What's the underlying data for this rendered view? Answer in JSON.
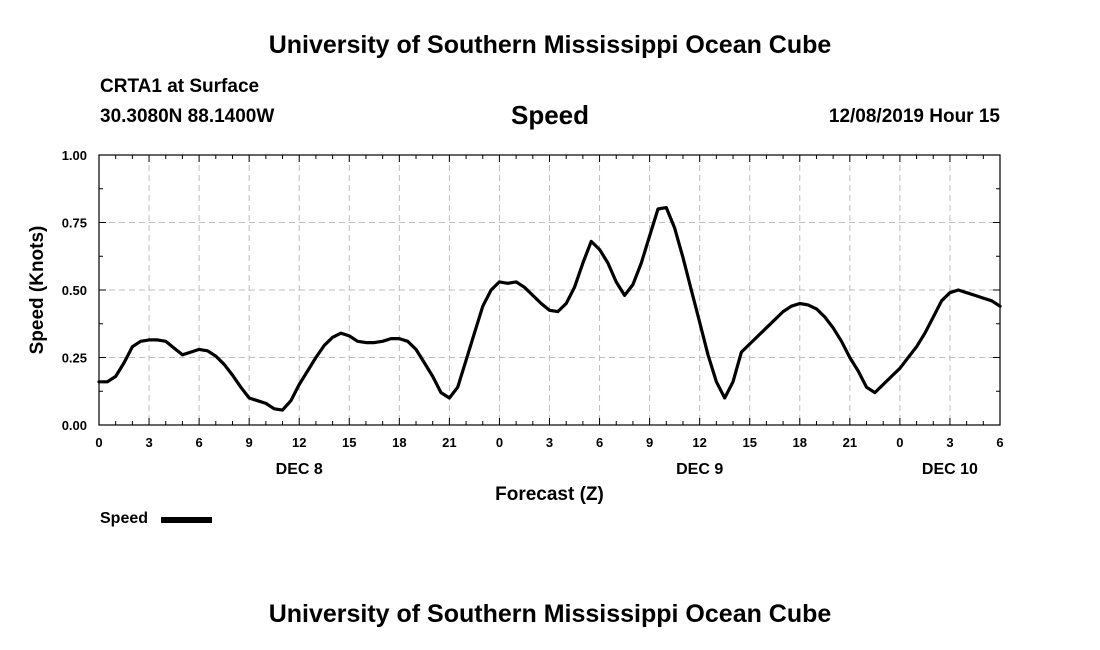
{
  "header": {
    "top_title": "University of Southern Mississippi Ocean Cube",
    "bottom_title": "University of Southern Mississippi Ocean Cube",
    "station": "CRTA1 at Surface",
    "coords": "30.3080N 88.1400W",
    "variable": "Speed",
    "datetime": "12/08/2019 Hour 15"
  },
  "legend": {
    "label": "Speed"
  },
  "chart_data": {
    "type": "line",
    "title": "Speed",
    "xlabel": "Forecast (Z)",
    "ylabel": "Speed (Knots)",
    "ylim": [
      0,
      1
    ],
    "xlim": [
      0,
      54
    ],
    "yticks": [
      "0.00",
      "0.25",
      "0.50",
      "0.75",
      "1.00"
    ],
    "ytick_values": [
      0,
      0.25,
      0.5,
      0.75,
      1.0
    ],
    "xtick_labels": [
      "0",
      "3",
      "6",
      "9",
      "12",
      "15",
      "18",
      "21",
      "0",
      "3",
      "6",
      "9",
      "12",
      "15",
      "18",
      "21",
      "0",
      "3",
      "6"
    ],
    "date_labels": [
      {
        "label": "DEC 8",
        "hour": 12
      },
      {
        "label": "DEC 9",
        "hour": 36
      },
      {
        "label": "DEC 10",
        "hour": 51
      }
    ],
    "grid": true,
    "series": [
      {
        "name": "Speed",
        "x": [
          0,
          0.5,
          1,
          1.5,
          2,
          2.5,
          3,
          3.5,
          4,
          4.5,
          5,
          5.5,
          6,
          6.5,
          7,
          7.5,
          8,
          8.5,
          9,
          9.5,
          10,
          10.5,
          11,
          11.5,
          12,
          12.5,
          13,
          13.5,
          14,
          14.5,
          15,
          15.5,
          16,
          16.5,
          17,
          17.5,
          18,
          18.5,
          19,
          19.5,
          20,
          20.5,
          21,
          21.5,
          22,
          22.5,
          23,
          23.5,
          24,
          24.5,
          25,
          25.5,
          26,
          26.5,
          27,
          27.5,
          28,
          28.5,
          29,
          29.5,
          30,
          30.5,
          31,
          31.5,
          32,
          32.5,
          33,
          33.5,
          34,
          34.5,
          35,
          35.5,
          36,
          36.5,
          37,
          37.5,
          38,
          38.5,
          39,
          39.5,
          40,
          40.5,
          41,
          41.5,
          42,
          42.5,
          43,
          43.5,
          44,
          44.5,
          45,
          45.5,
          46,
          46.5,
          47,
          47.5,
          48,
          48.5,
          49,
          49.5,
          50,
          50.5,
          51,
          51.5,
          52,
          52.5,
          53,
          53.5,
          54
        ],
        "values": [
          0.16,
          0.16,
          0.18,
          0.23,
          0.29,
          0.31,
          0.315,
          0.315,
          0.31,
          0.285,
          0.26,
          0.27,
          0.28,
          0.275,
          0.255,
          0.225,
          0.185,
          0.14,
          0.1,
          0.09,
          0.08,
          0.06,
          0.055,
          0.09,
          0.15,
          0.2,
          0.25,
          0.295,
          0.325,
          0.34,
          0.33,
          0.31,
          0.305,
          0.305,
          0.31,
          0.32,
          0.32,
          0.31,
          0.28,
          0.23,
          0.18,
          0.12,
          0.1,
          0.14,
          0.24,
          0.34,
          0.44,
          0.5,
          0.53,
          0.525,
          0.53,
          0.51,
          0.48,
          0.45,
          0.425,
          0.42,
          0.45,
          0.51,
          0.6,
          0.68,
          0.65,
          0.6,
          0.53,
          0.48,
          0.52,
          0.6,
          0.7,
          0.8,
          0.805,
          0.73,
          0.62,
          0.5,
          0.38,
          0.26,
          0.16,
          0.1,
          0.16,
          0.27,
          0.3,
          0.33,
          0.36,
          0.39,
          0.42,
          0.44,
          0.45,
          0.445,
          0.43,
          0.4,
          0.36,
          0.31,
          0.25,
          0.2,
          0.14,
          0.12,
          0.15,
          0.18,
          0.21,
          0.25,
          0.29,
          0.34,
          0.4,
          0.46,
          0.49,
          0.5,
          0.49,
          0.48,
          0.47,
          0.46,
          0.44
        ]
      }
    ]
  }
}
